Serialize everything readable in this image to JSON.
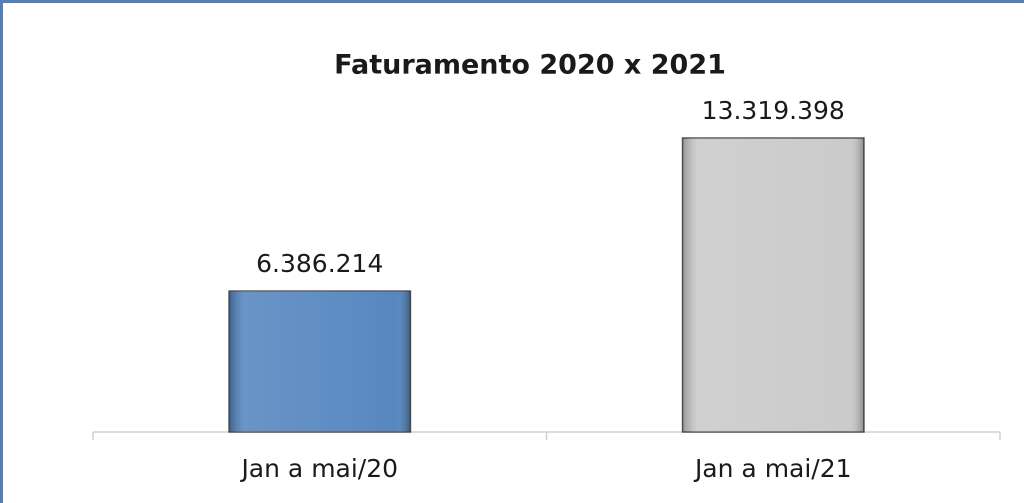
{
  "chart_data": {
    "type": "bar",
    "title": "Faturamento 2020 x 2021",
    "categories": [
      "Jan a mai/20",
      "Jan a mai/21"
    ],
    "values": [
      6386214,
      13319398
    ],
    "value_labels": [
      "6.386.214",
      "13.319.398"
    ],
    "colors": [
      "#4f81bd",
      "#c8c8c8"
    ],
    "ylim": [
      0,
      14000000
    ]
  }
}
